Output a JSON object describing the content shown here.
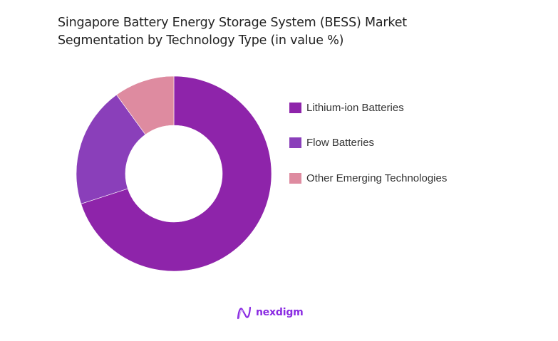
{
  "title_line1": "Singapore Battery Energy Storage System (BESS) Market",
  "title_line2": "Segmentation by Technology Type (in value %)",
  "chart_data": {
    "type": "pie",
    "subtype": "donut",
    "title": "Singapore Battery Energy Storage System (BESS) Market Segmentation by Technology Type (in value %)",
    "categories": [
      "Lithium-ion Batteries",
      "Flow Batteries",
      "Other Emerging Technologies"
    ],
    "values": [
      70,
      20,
      10
    ],
    "colors": [
      "#8e24aa",
      "#8a3fba",
      "#de8ba0"
    ],
    "legend_position": "right",
    "start_angle": "12 o'clock, clockwise"
  },
  "legend": [
    {
      "label": "Lithium-ion Batteries",
      "color": "#8e24aa"
    },
    {
      "label": "Flow Batteries",
      "color": "#8a3fba"
    },
    {
      "label": "Other Emerging Technologies",
      "color": "#de8ba0"
    }
  ],
  "brand": {
    "name": "nexdigm",
    "color": "#8a2be2"
  }
}
